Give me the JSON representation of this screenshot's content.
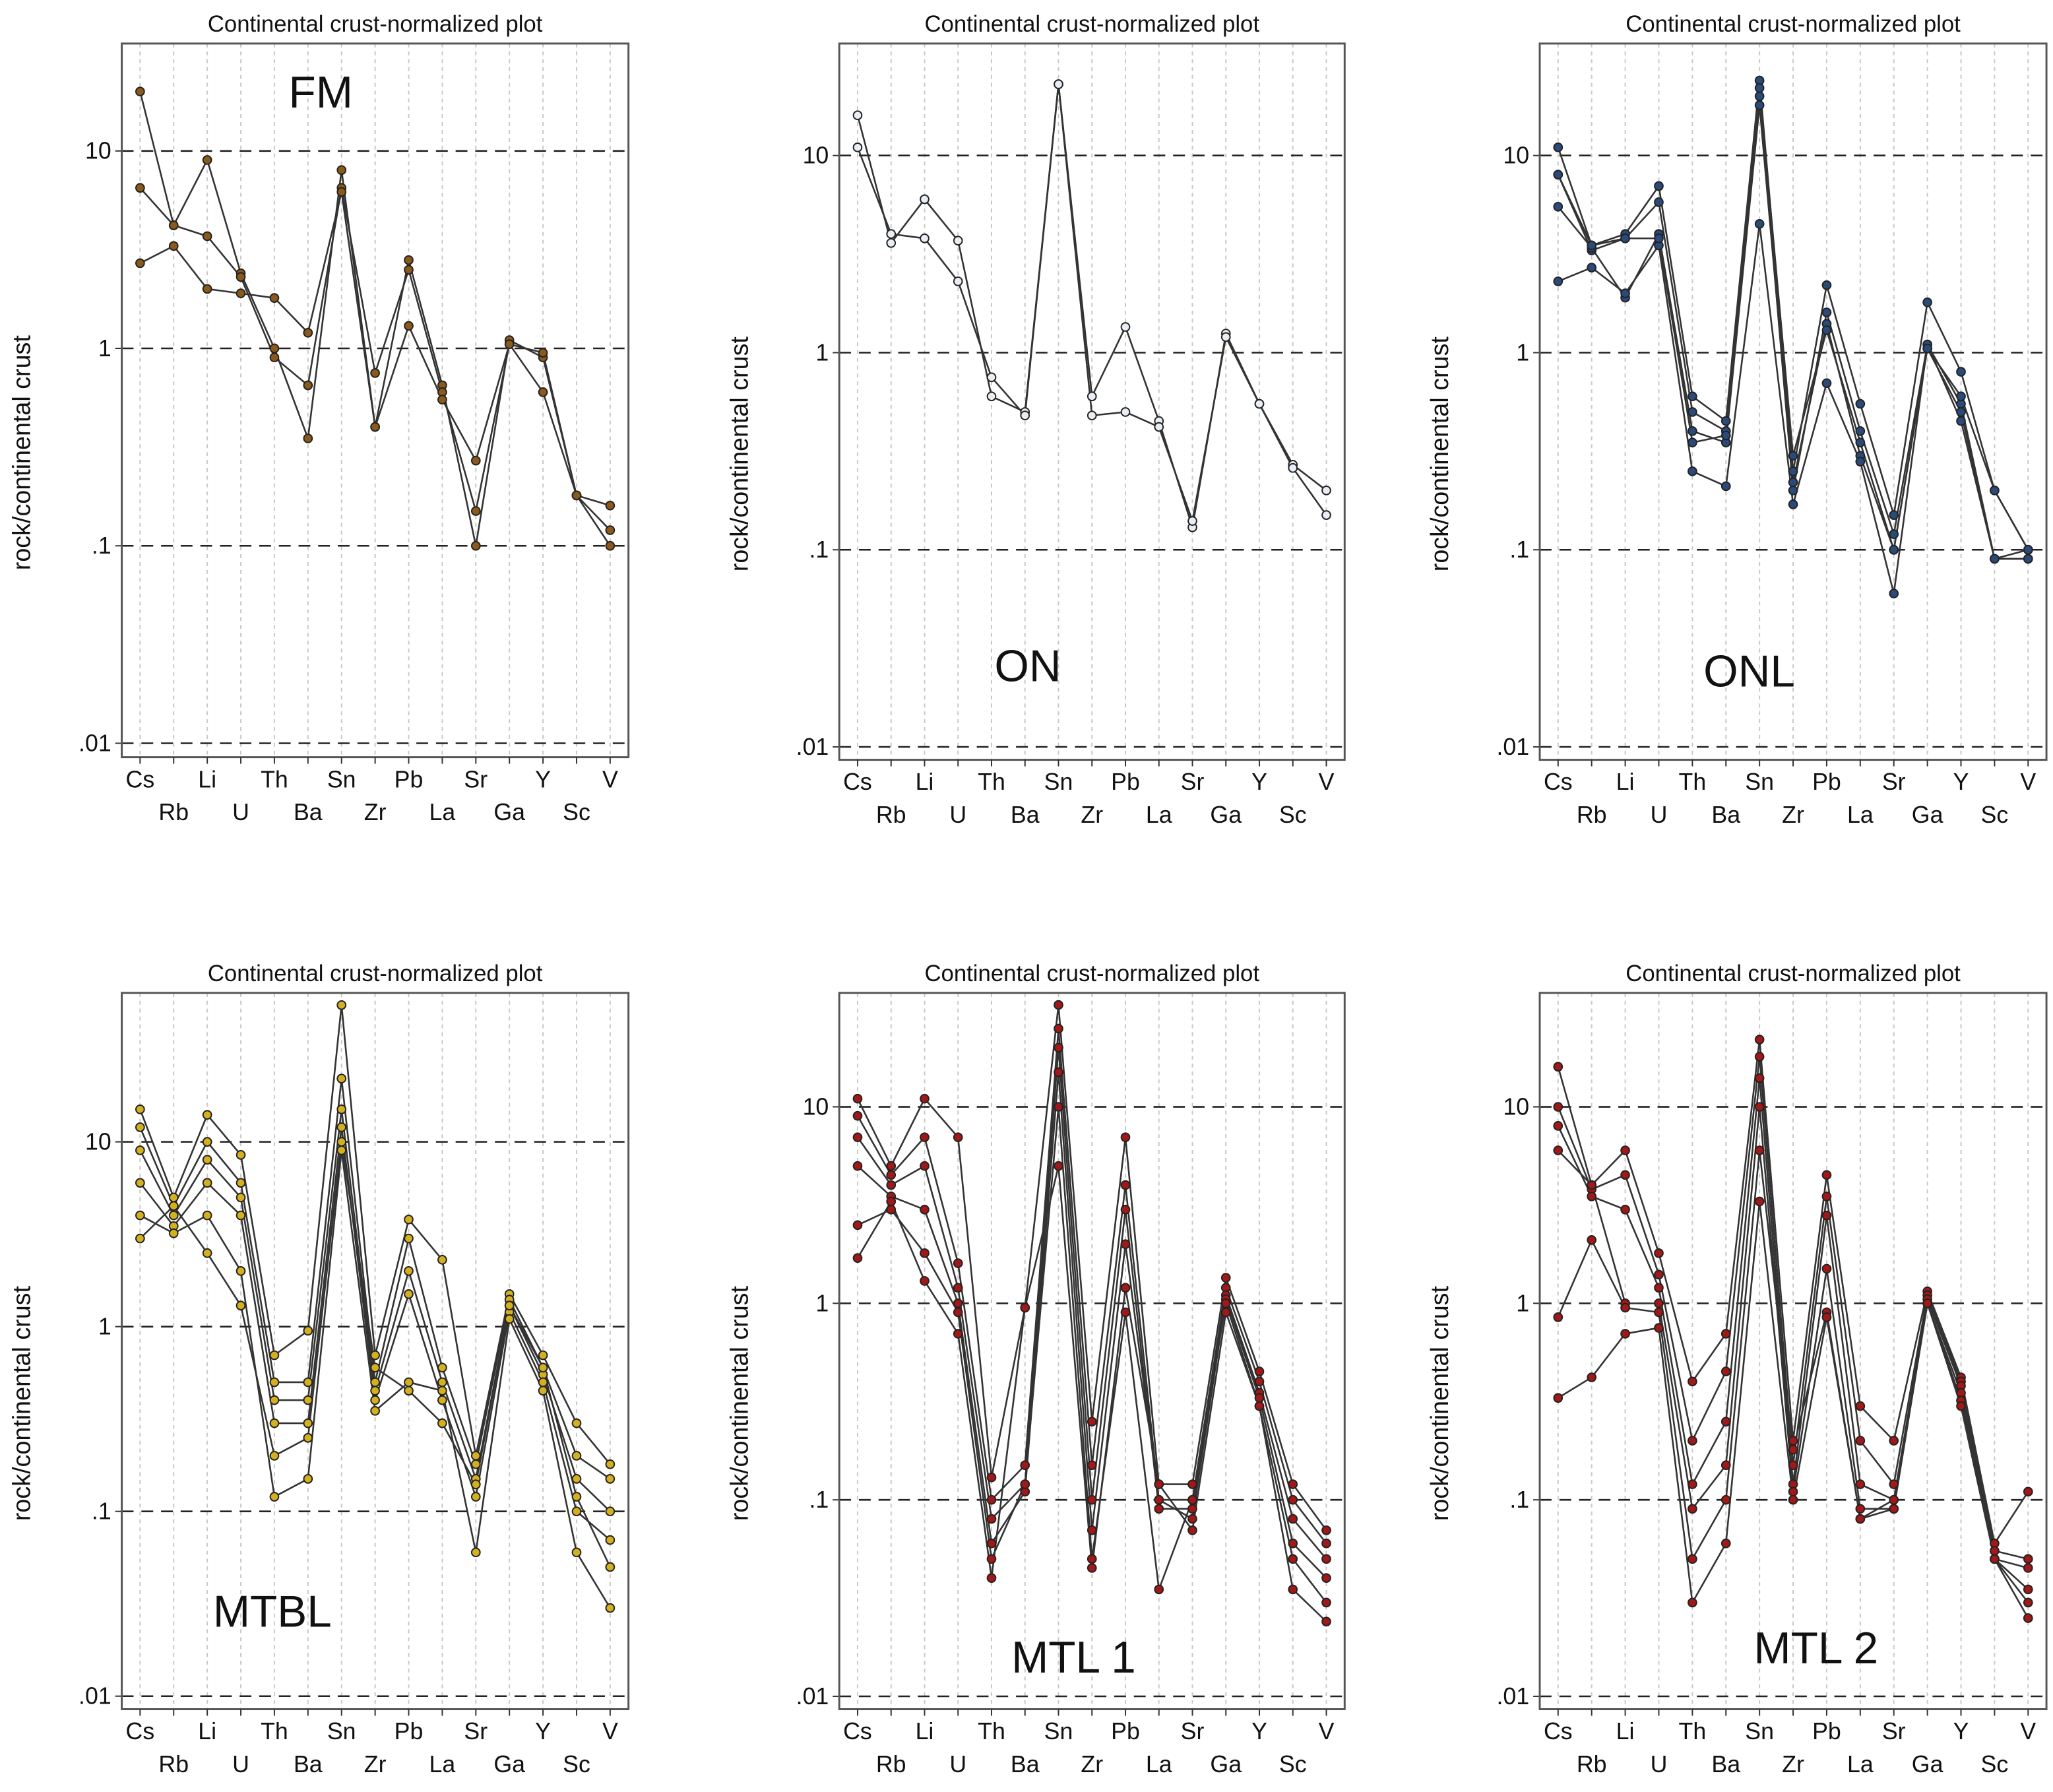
{
  "chart_data": [
    {
      "type": "line",
      "title": "Continental crust-normalized plot",
      "ylabel": "rock/continental crust",
      "annotation": "FM",
      "categories": [
        "Cs",
        "Rb",
        "Li",
        "U",
        "Th",
        "Ba",
        "Sn",
        "Zr",
        "Pb",
        "La",
        "Sr",
        "Ga",
        "Y",
        "Sc",
        "V"
      ],
      "yscale": "log",
      "ylim": [
        0.0085,
        35
      ],
      "yticks": [
        {
          "value": 0.01,
          "label": ".01"
        },
        {
          "value": 0.1,
          "label": ".1"
        },
        1,
        10
      ],
      "grid": true,
      "line_color": "#333333",
      "series": [
        {
          "color": "#8b5a1a",
          "values": [
            20,
            4.2,
            9,
            2.4,
            1.0,
            0.35,
            8,
            0.4,
            2.8,
            0.65,
            0.1,
            1.1,
            0.9,
            0.18,
            0.1
          ]
        },
        {
          "color": "#8b5a1a",
          "values": [
            6.5,
            4.2,
            3.7,
            2.3,
            0.9,
            0.65,
            6.5,
            0.75,
            2.5,
            0.6,
            0.15,
            1.05,
            0.95,
            0.18,
            0.12
          ]
        },
        {
          "color": "#8b5a1a",
          "values": [
            2.7,
            3.3,
            2.0,
            1.9,
            1.8,
            1.2,
            6.2,
            0.4,
            1.3,
            0.55,
            0.27,
            1.05,
            0.6,
            0.18,
            0.16
          ]
        }
      ]
    },
    {
      "type": "line",
      "title": "Continental crust-normalized plot",
      "ylabel": "rock/continental crust",
      "annotation": "ON",
      "categories": [
        "Cs",
        "Rb",
        "Li",
        "U",
        "Th",
        "Ba",
        "Sn",
        "Zr",
        "Pb",
        "La",
        "Sr",
        "Ga",
        "Y",
        "Sc",
        "V"
      ],
      "yscale": "log",
      "ylim": [
        0.0086,
        37
      ],
      "yticks": [
        {
          "value": 0.01,
          "label": ".01"
        },
        {
          "value": 0.1,
          "label": ".1"
        },
        1,
        10
      ],
      "grid": true,
      "line_color": "#333333",
      "series": [
        {
          "color": "#e8eef4",
          "values": [
            16,
            3.6,
            6,
            3.7,
            0.6,
            0.5,
            23,
            0.6,
            1.35,
            0.45,
            0.13,
            1.25,
            0.55,
            0.27,
            0.2
          ]
        },
        {
          "color": "#e8eef4",
          "values": [
            11,
            4,
            3.8,
            2.3,
            0.75,
            0.48,
            23,
            0.48,
            0.5,
            0.42,
            0.14,
            1.2,
            0.55,
            0.26,
            0.15
          ]
        }
      ]
    },
    {
      "type": "line",
      "title": "Continental crust-normalized plot",
      "ylabel": "rock/continental crust",
      "annotation": "ONL",
      "categories": [
        "Cs",
        "Rb",
        "Li",
        "U",
        "Th",
        "Ba",
        "Sn",
        "Zr",
        "Pb",
        "La",
        "Sr",
        "Ga",
        "Y",
        "Sc",
        "V"
      ],
      "yscale": "log",
      "ylim": [
        0.0086,
        37
      ],
      "yticks": [
        {
          "value": 0.01,
          "label": ".01"
        },
        {
          "value": 0.1,
          "label": ".1"
        },
        1,
        10
      ],
      "grid": true,
      "line_color": "#333333",
      "series": [
        {
          "color": "#2a4a7a",
          "values": [
            11,
            3.5,
            4.0,
            7.0,
            0.6,
            0.45,
            24,
            0.25,
            2.2,
            0.55,
            0.15,
            1.8,
            0.8,
            0.2,
            0.1
          ]
        },
        {
          "color": "#2a4a7a",
          "values": [
            8,
            3.3,
            3.8,
            5.8,
            0.5,
            0.4,
            20,
            0.2,
            1.6,
            0.4,
            0.12,
            1.1,
            0.55,
            0.09,
            0.1
          ]
        },
        {
          "color": "#2a4a7a",
          "values": [
            5.5,
            3.4,
            1.9,
            4.0,
            0.4,
            0.35,
            18,
            0.22,
            1.4,
            0.3,
            0.1,
            1.05,
            0.5,
            0.09,
            0.09
          ]
        },
        {
          "color": "#2a4a7a",
          "values": [
            2.3,
            2.7,
            2.0,
            3.5,
            0.25,
            0.21,
            4.5,
            0.17,
            0.7,
            0.28,
            0.06,
            1.1,
            0.45,
            0.09,
            0.09
          ]
        },
        {
          "color": "#2a4a7a",
          "values": [
            8,
            3.5,
            3.8,
            3.8,
            0.35,
            0.38,
            22,
            0.3,
            1.3,
            0.35,
            0.1,
            1.05,
            0.6,
            0.2,
            0.1
          ]
        }
      ]
    },
    {
      "type": "line",
      "title": "Continental crust-normalized plot",
      "ylabel": "rock/continental crust",
      "annotation": "MTBL",
      "categories": [
        "Cs",
        "Rb",
        "Li",
        "U",
        "Th",
        "Ba",
        "Sn",
        "Zr",
        "Pb",
        "La",
        "Sr",
        "Ga",
        "Y",
        "Sc",
        "V"
      ],
      "yscale": "log",
      "ylim": [
        0.0085,
        64
      ],
      "yticks": [
        {
          "value": 0.01,
          "label": ".01"
        },
        {
          "value": 0.1,
          "label": ".1"
        },
        1,
        10
      ],
      "grid": true,
      "line_color": "#333333",
      "series": [
        {
          "color": "#d4b020",
          "values": [
            15,
            5,
            14,
            8.5,
            0.7,
            0.95,
            55,
            0.7,
            3.8,
            2.3,
            0.2,
            1.5,
            0.7,
            0.3,
            0.18
          ]
        },
        {
          "color": "#d4b020",
          "values": [
            12,
            4.5,
            10,
            6,
            0.5,
            0.5,
            22,
            0.5,
            3,
            0.6,
            0.18,
            1.4,
            0.6,
            0.2,
            0.15
          ]
        },
        {
          "color": "#d4b020",
          "values": [
            9,
            4,
            8,
            5,
            0.4,
            0.4,
            15,
            0.45,
            2,
            0.5,
            0.15,
            1.3,
            0.55,
            0.15,
            0.1
          ]
        },
        {
          "color": "#d4b020",
          "values": [
            6,
            3.5,
            6,
            4,
            0.3,
            0.3,
            12,
            0.4,
            1.5,
            0.4,
            0.12,
            1.2,
            0.5,
            0.1,
            0.07
          ]
        },
        {
          "color": "#d4b020",
          "values": [
            4,
            3.2,
            4,
            2,
            0.12,
            0.15,
            9,
            0.35,
            0.5,
            0.45,
            0.06,
            1.1,
            0.45,
            0.06,
            0.03
          ]
        },
        {
          "color": "#d4b020",
          "values": [
            3,
            4.5,
            2.5,
            1.3,
            0.2,
            0.25,
            10,
            0.6,
            0.45,
            0.3,
            0.14,
            1.3,
            0.6,
            0.12,
            0.05
          ]
        }
      ]
    },
    {
      "type": "line",
      "title": "Continental crust-normalized plot",
      "ylabel": "rock/continental crust",
      "annotation": "MTL 1",
      "categories": [
        "Cs",
        "Rb",
        "Li",
        "U",
        "Th",
        "Ba",
        "Sn",
        "Zr",
        "Pb",
        "La",
        "Sr",
        "Ga",
        "Y",
        "Sc",
        "V"
      ],
      "yscale": "log",
      "ylim": [
        0.0086,
        38
      ],
      "yticks": [
        {
          "value": 0.01,
          "label": ".01"
        },
        {
          "value": 0.1,
          "label": ".1"
        },
        1,
        10
      ],
      "grid": true,
      "line_color": "#333333",
      "series": [
        {
          "color": "#a01818",
          "values": [
            11,
            5,
            11,
            7,
            0.13,
            0.95,
            33,
            0.25,
            7,
            0.12,
            0.12,
            1.35,
            0.45,
            0.12,
            0.07
          ]
        },
        {
          "color": "#a01818",
          "values": [
            9,
            4.5,
            7,
            1.6,
            0.1,
            0.15,
            25,
            0.15,
            4,
            0.1,
            0.1,
            1.2,
            0.4,
            0.1,
            0.06
          ]
        },
        {
          "color": "#a01818",
          "values": [
            7,
            4,
            5,
            1.2,
            0.08,
            0.12,
            20,
            0.1,
            3,
            0.09,
            0.09,
            1.1,
            0.35,
            0.08,
            0.05
          ]
        },
        {
          "color": "#a01818",
          "values": [
            5,
            3.5,
            3,
            1.0,
            0.06,
            0.11,
            15,
            0.07,
            2,
            0.1,
            0.08,
            1.05,
            0.33,
            0.06,
            0.04
          ]
        },
        {
          "color": "#a01818",
          "values": [
            2.5,
            3,
            1.8,
            0.9,
            0.05,
            0.12,
            10,
            0.05,
            0.9,
            0.035,
            0.1,
            1.0,
            0.3,
            0.05,
            0.03
          ]
        },
        {
          "color": "#a01818",
          "values": [
            1.7,
            3.3,
            1.3,
            0.7,
            0.04,
            0.95,
            5,
            0.045,
            1.2,
            0.12,
            0.07,
            0.9,
            0.3,
            0.035,
            0.024
          ]
        }
      ]
    },
    {
      "type": "line",
      "title": "Continental crust-normalized plot",
      "ylabel": "rock/continental crust",
      "annotation": "MTL 2",
      "categories": [
        "Cs",
        "Rb",
        "Li",
        "U",
        "Th",
        "Ba",
        "Sn",
        "Zr",
        "Pb",
        "La",
        "Sr",
        "Ga",
        "Y",
        "Sc",
        "V"
      ],
      "yscale": "log",
      "ylim": [
        0.0086,
        38
      ],
      "yticks": [
        {
          "value": 0.01,
          "label": ".01"
        },
        {
          "value": 0.1,
          "label": ".1"
        },
        1,
        10
      ],
      "grid": true,
      "line_color": "#333333",
      "series": [
        {
          "color": "#a01818",
          "values": [
            16,
            4,
            6,
            1.8,
            0.4,
            0.7,
            22,
            0.2,
            4.5,
            0.3,
            0.2,
            1.15,
            0.42,
            0.06,
            0.11
          ]
        },
        {
          "color": "#a01818",
          "values": [
            10,
            3.8,
            4.5,
            1.4,
            0.2,
            0.45,
            18,
            0.15,
            3.5,
            0.2,
            0.12,
            1.1,
            0.4,
            0.055,
            0.05
          ]
        },
        {
          "color": "#a01818",
          "values": [
            8,
            3.5,
            3,
            1.2,
            0.12,
            0.25,
            14,
            0.12,
            2.8,
            0.12,
            0.1,
            1.05,
            0.38,
            0.05,
            0.045
          ]
        },
        {
          "color": "#a01818",
          "values": [
            6,
            4,
            1,
            1.0,
            0.09,
            0.15,
            10,
            0.11,
            1.5,
            0.09,
            0.09,
            1.0,
            0.35,
            0.05,
            0.035
          ]
        },
        {
          "color": "#a01818",
          "values": [
            0.85,
            2.1,
            0.95,
            0.9,
            0.05,
            0.1,
            6,
            0.18,
            0.9,
            0.08,
            0.09,
            1.0,
            0.32,
            0.05,
            0.03
          ]
        },
        {
          "color": "#a01818",
          "values": [
            0.33,
            0.42,
            0.7,
            0.75,
            0.03,
            0.06,
            3.3,
            0.1,
            0.85,
            0.08,
            0.1,
            1.0,
            0.3,
            0.05,
            0.025
          ]
        }
      ]
    }
  ]
}
